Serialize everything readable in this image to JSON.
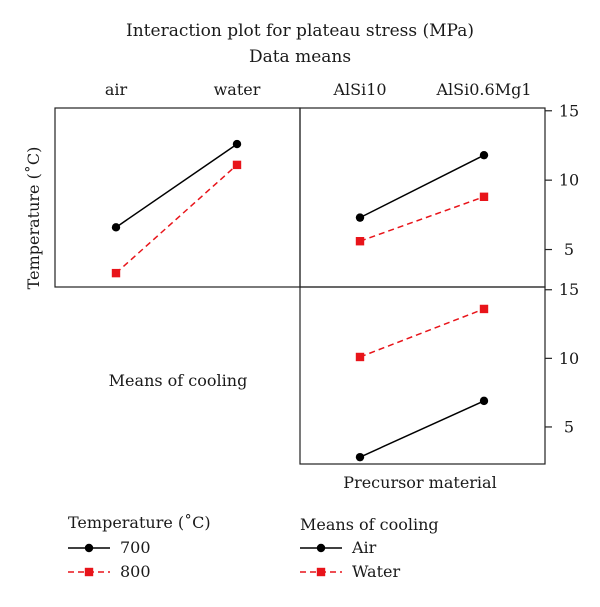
{
  "chart_data": {
    "type": "line",
    "title": "Interaction plot for plateau stress (MPa)",
    "subtitle": "Data means",
    "factors": {
      "cooling": {
        "label": "Means of cooling",
        "levels": [
          "air",
          "water"
        ]
      },
      "precursor": {
        "label": "Precursor material",
        "levels": [
          "AlSi10",
          "AlSi0.6Mg1"
        ]
      },
      "temperature": {
        "label": "Temperature (˚C)"
      }
    },
    "ylim": [
      2.3,
      15.2
    ],
    "yticks": [
      5,
      10,
      15
    ],
    "panels": [
      {
        "id": "cooling-by-temperature",
        "x_factor": "cooling",
        "trace_factor": "temperature",
        "categories": [
          "air",
          "water"
        ],
        "series": [
          {
            "name": "700",
            "color": "#000000",
            "style": "solid",
            "marker": "circle",
            "values": [
              6.6,
              12.6
            ]
          },
          {
            "name": "800",
            "color": "#e8141a",
            "style": "dashed",
            "marker": "square",
            "values": [
              3.3,
              11.1
            ]
          }
        ]
      },
      {
        "id": "precursor-by-temperature",
        "x_factor": "precursor",
        "trace_factor": "temperature",
        "categories": [
          "AlSi10",
          "AlSi0.6Mg1"
        ],
        "series": [
          {
            "name": "700",
            "color": "#000000",
            "style": "solid",
            "marker": "circle",
            "values": [
              7.3,
              11.8
            ]
          },
          {
            "name": "800",
            "color": "#e8141a",
            "style": "dashed",
            "marker": "square",
            "values": [
              5.6,
              8.8
            ]
          }
        ]
      },
      {
        "id": "precursor-by-cooling",
        "x_factor": "precursor",
        "trace_factor": "cooling",
        "categories": [
          "AlSi10",
          "AlSi0.6Mg1"
        ],
        "series": [
          {
            "name": "Air",
            "color": "#000000",
            "style": "solid",
            "marker": "circle",
            "values": [
              2.8,
              6.9
            ]
          },
          {
            "name": "Water",
            "color": "#e8141a",
            "style": "dashed",
            "marker": "square",
            "values": [
              10.1,
              13.6
            ]
          }
        ]
      }
    ]
  },
  "legends": [
    {
      "title": "Temperature (˚C)",
      "entries": [
        {
          "label": "700",
          "color": "#000000",
          "style": "solid",
          "marker": "circle"
        },
        {
          "label": "800",
          "color": "#e8141a",
          "style": "dashed",
          "marker": "square"
        }
      ]
    },
    {
      "title": "Means of cooling",
      "entries": [
        {
          "label": "Air",
          "color": "#000000",
          "style": "solid",
          "marker": "circle"
        },
        {
          "label": "Water",
          "color": "#e8141a",
          "style": "dashed",
          "marker": "square"
        }
      ]
    }
  ]
}
